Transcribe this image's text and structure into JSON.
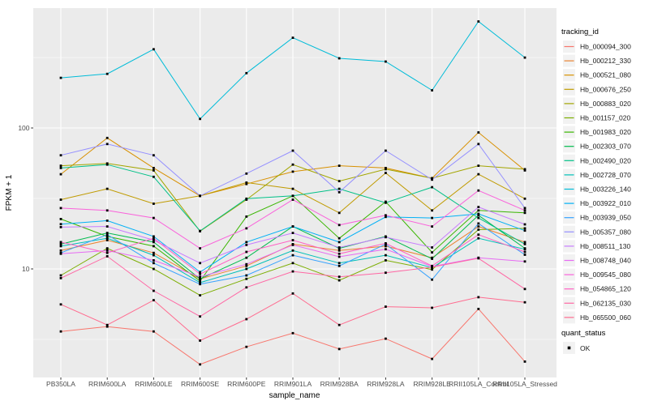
{
  "chart_data": {
    "type": "line",
    "title": "",
    "xlabel": "sample_name",
    "ylabel": "FPKM + 1",
    "y_scale": "log10",
    "ylim": [
      1.7,
      710
    ],
    "y_ticks": [
      {
        "value": 10,
        "label": "10"
      },
      {
        "value": 100,
        "label": "100"
      }
    ],
    "y_minor_gridlines": [
      3.162,
      31.62,
      316.2
    ],
    "grid": "white major+minor gridlines on gray panel",
    "point_marker": "small black square at every data point",
    "categories": [
      "PB350LA",
      "RRIM600LA",
      "RRIM600LE",
      "RRIM600SE",
      "RRIM600PE",
      "RRIM901LA",
      "RRIM928BA",
      "RRIM928LA",
      "RRIM928LE",
      "RRII105LA_Control",
      "RRII105LA_Stressed"
    ],
    "series": [
      {
        "name": "Hb_000094_300",
        "color": "#F8766D",
        "values": [
          3.6,
          3.9,
          3.6,
          2.1,
          2.8,
          3.5,
          2.7,
          3.2,
          2.3,
          5.2,
          2.2
        ]
      },
      {
        "name": "Hb_000212_330",
        "color": "#EA8331",
        "values": [
          13.5,
          16,
          13,
          8.5,
          10.5,
          15,
          13.5,
          14.5,
          12,
          20,
          15.5
        ]
      },
      {
        "name": "Hb_000521_080",
        "color": "#D89000",
        "values": [
          47,
          85,
          52,
          33,
          40,
          49,
          54,
          52,
          44,
          93,
          50
        ]
      },
      {
        "name": "Hb_000676_250",
        "color": "#C09B00",
        "values": [
          31,
          37,
          29,
          33,
          41,
          37,
          25,
          48,
          26,
          47,
          31.5
        ]
      },
      {
        "name": "Hb_000883_020",
        "color": "#A3A500",
        "values": [
          54,
          56,
          50,
          18.5,
          31,
          55,
          42,
          51,
          44,
          54,
          51
        ]
      },
      {
        "name": "Hb_001157_020",
        "color": "#7CAE00",
        "values": [
          9,
          14,
          10,
          6.5,
          8.5,
          11,
          8.3,
          11.5,
          9.9,
          19,
          19.4
        ]
      },
      {
        "name": "Hb_001983_020",
        "color": "#39B600",
        "values": [
          22.6,
          17,
          14.5,
          8.2,
          23.5,
          33,
          16.5,
          30,
          13.1,
          26,
          25
        ]
      },
      {
        "name": "Hb_002303_070",
        "color": "#00BB4E",
        "values": [
          15,
          18,
          15.5,
          8.5,
          12,
          20,
          14,
          17,
          11.8,
          24,
          14
        ]
      },
      {
        "name": "Hb_002490_020",
        "color": "#00C087",
        "values": [
          52,
          55,
          45,
          18.6,
          31.5,
          33,
          37,
          29.5,
          38,
          23,
          15
        ]
      },
      {
        "name": "Hb_002728_070",
        "color": "#00C0B8",
        "values": [
          14.5,
          16.5,
          12.5,
          8,
          10,
          13.5,
          11,
          12.5,
          10.2,
          16.5,
          13.8
        ]
      },
      {
        "name": "Hb_003226_140",
        "color": "#00BCD8",
        "values": [
          227,
          242,
          362,
          116,
          245,
          437,
          312,
          296,
          185,
          570,
          316
        ]
      },
      {
        "name": "Hb_003922_010",
        "color": "#00B0F6",
        "values": [
          20.8,
          22,
          17,
          9.5,
          15.5,
          20,
          15.5,
          23.4,
          23,
          24.6,
          18.7
        ]
      },
      {
        "name": "Hb_003939_050",
        "color": "#35A2FF",
        "values": [
          13,
          17.5,
          11,
          7.8,
          9,
          12.5,
          10.5,
          15,
          8.4,
          21,
          12.6
        ]
      },
      {
        "name": "Hb_005357_080",
        "color": "#9590FF",
        "values": [
          64,
          77,
          64,
          33,
          47.5,
          69,
          35,
          69,
          43,
          77,
          27
        ]
      },
      {
        "name": "Hb_008511_130",
        "color": "#C77CFF",
        "values": [
          19.8,
          20,
          16,
          11,
          14.8,
          18,
          14.2,
          16.8,
          14.2,
          27.5,
          20.7
        ]
      },
      {
        "name": "Hb_008748_040",
        "color": "#E76BF3",
        "values": [
          12.8,
          13.5,
          11.5,
          8.8,
          10.8,
          14.8,
          12.2,
          13.8,
          10.4,
          12,
          11.3
        ]
      },
      {
        "name": "Hb_009545_080",
        "color": "#FA62DB",
        "values": [
          27,
          26,
          23,
          14,
          19.4,
          31,
          20.5,
          24,
          20,
          36,
          26
        ]
      },
      {
        "name": "Hb_054865_120",
        "color": "#FF61C3",
        "values": [
          15.5,
          13,
          16.5,
          9.2,
          13.2,
          16,
          12.8,
          15.2,
          10.5,
          17.5,
          13.2
        ]
      },
      {
        "name": "Hb_062135_030",
        "color": "#FF67A4",
        "values": [
          8.6,
          12.3,
          7,
          4.6,
          7.4,
          9.6,
          8.8,
          9.4,
          10.3,
          11.9,
          7.2
        ]
      },
      {
        "name": "Hb_065500_060",
        "color": "#FF6C90",
        "values": [
          5.6,
          4,
          6,
          3.1,
          4.4,
          6.7,
          4,
          5.4,
          5.3,
          6.3,
          5.8
        ]
      }
    ],
    "legend": {
      "position": "right",
      "tracking_title": "tracking_id",
      "quant_title": "quant_status",
      "quant_items": [
        "OK"
      ]
    },
    "colors": {
      "panel_bg": "#EBEBEB",
      "gridline": "#FFFFFF",
      "tick_label": "#4D4D4D",
      "axis_title": "#000000",
      "point": "#000000",
      "legend_key_bg": "#F2F2F2"
    }
  }
}
